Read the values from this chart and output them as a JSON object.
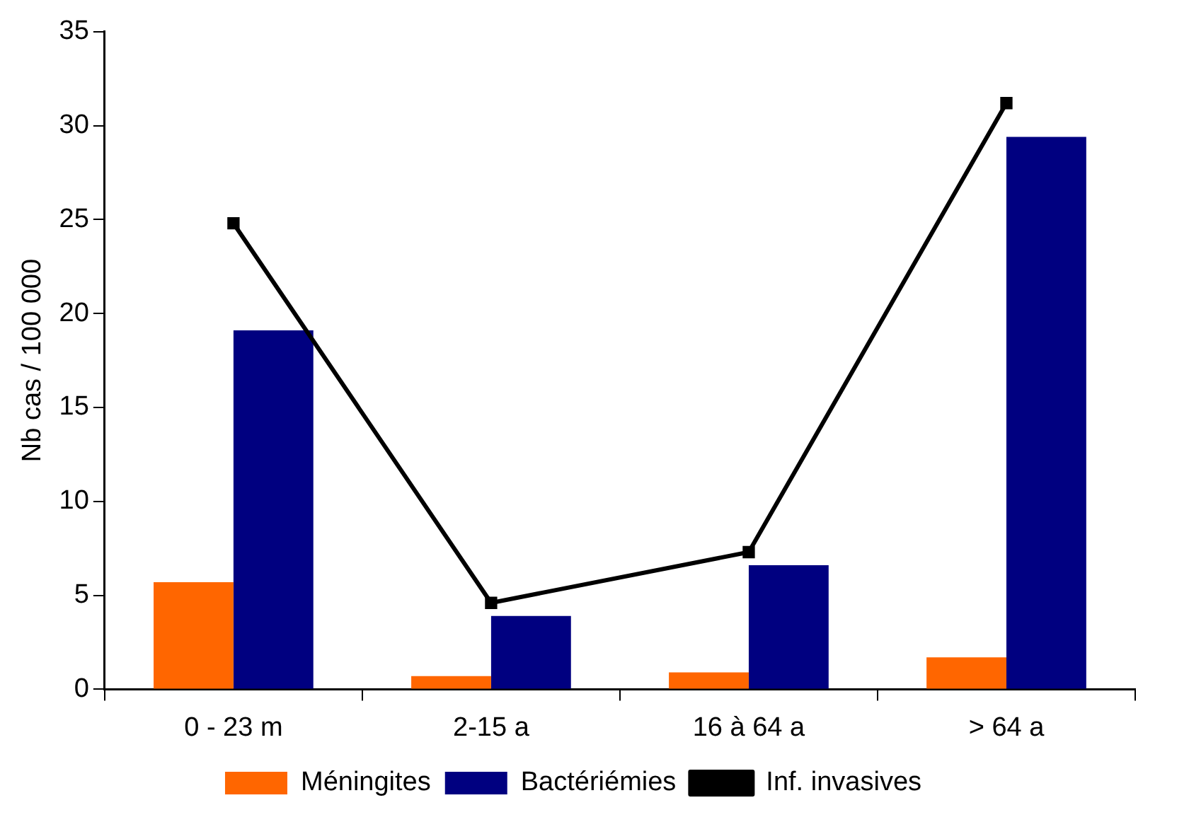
{
  "chart_data": {
    "type": "bar",
    "ylabel": "Nb cas / 100 000",
    "categories": [
      "0 - 23 m",
      "2-15 a",
      "16 à 64 a",
      "> 64 a"
    ],
    "series": [
      {
        "name": "Méningites",
        "color": "#ff6600",
        "values": [
          5.7,
          0.7,
          0.9,
          1.7
        ]
      },
      {
        "name": "Bactériémies",
        "color": "#000080",
        "values": [
          19.1,
          3.9,
          6.6,
          29.4
        ]
      },
      {
        "name": "Inf. invasives",
        "type": "line",
        "color": "#000000",
        "values": [
          24.8,
          4.6,
          7.3,
          31.2
        ],
        "marker": "square",
        "line_style": "solid"
      }
    ],
    "ylim": [
      0,
      35
    ],
    "yticks": [
      0,
      5,
      10,
      15,
      20,
      25,
      30,
      35
    ],
    "grid": false,
    "legend": "bottom"
  }
}
